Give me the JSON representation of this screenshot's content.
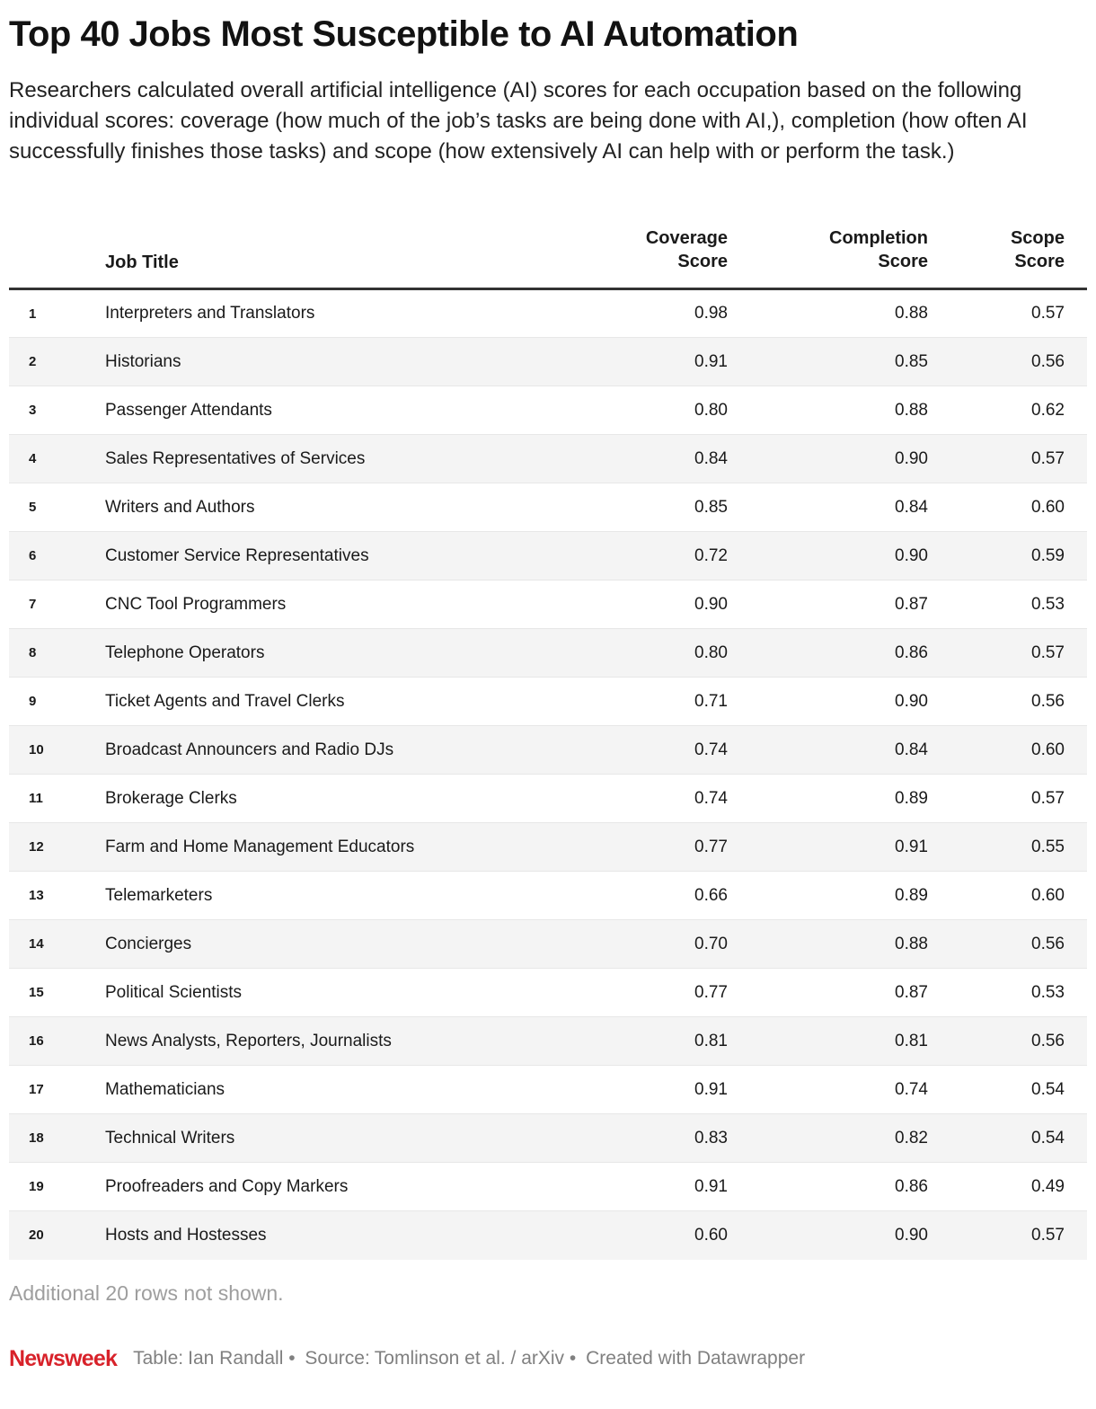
{
  "header": {
    "title": "Top 40 Jobs Most Susceptible to AI Automation",
    "subtitle": "Researchers calculated overall artificial intelligence (AI) scores for each occupation based on the following individual scores: coverage (how much of the job’s tasks are being done with AI,), completion (how often AI successfully finishes those tasks) and scope (how extensively AI can help with or perform the task.)"
  },
  "table": {
    "headers": {
      "rank": "",
      "job_title": "Job Title",
      "coverage_line1": "Coverage",
      "coverage_line2": "Score",
      "completion_line1": "Completion",
      "completion_line2": "Score",
      "scope_line1": "Scope",
      "scope_line2": "Score"
    }
  },
  "chart_data": {
    "type": "table",
    "title": "Top 40 Jobs Most Susceptible to AI Automation",
    "columns": [
      "",
      "Job Title",
      "Coverage Score",
      "Completion Score",
      "Scope Score"
    ],
    "rows": [
      [
        "1",
        "Interpreters and Translators",
        "0.98",
        "0.88",
        "0.57"
      ],
      [
        "2",
        "Historians",
        "0.91",
        "0.85",
        "0.56"
      ],
      [
        "3",
        "Passenger Attendants",
        "0.80",
        "0.88",
        "0.62"
      ],
      [
        "4",
        "Sales Representatives of Services",
        "0.84",
        "0.90",
        "0.57"
      ],
      [
        "5",
        "Writers and Authors",
        "0.85",
        "0.84",
        "0.60"
      ],
      [
        "6",
        "Customer Service Representatives",
        "0.72",
        "0.90",
        "0.59"
      ],
      [
        "7",
        "CNC Tool Programmers",
        "0.90",
        "0.87",
        "0.53"
      ],
      [
        "8",
        "Telephone Operators",
        "0.80",
        "0.86",
        "0.57"
      ],
      [
        "9",
        "Ticket Agents and Travel Clerks",
        "0.71",
        "0.90",
        "0.56"
      ],
      [
        "10",
        "Broadcast Announcers and Radio DJs",
        "0.74",
        "0.84",
        "0.60"
      ],
      [
        "11",
        "Brokerage Clerks",
        "0.74",
        "0.89",
        "0.57"
      ],
      [
        "12",
        "Farm and Home Management Educators",
        "0.77",
        "0.91",
        "0.55"
      ],
      [
        "13",
        "Telemarketers",
        "0.66",
        "0.89",
        "0.60"
      ],
      [
        "14",
        "Concierges",
        "0.70",
        "0.88",
        "0.56"
      ],
      [
        "15",
        "Political Scientists",
        "0.77",
        "0.87",
        "0.53"
      ],
      [
        "16",
        "News Analysts, Reporters, Journalists",
        "0.81",
        "0.81",
        "0.56"
      ],
      [
        "17",
        "Mathematicians",
        "0.91",
        "0.74",
        "0.54"
      ],
      [
        "18",
        "Technical Writers",
        "0.83",
        "0.82",
        "0.54"
      ],
      [
        "19",
        "Proofreaders and Copy Markers",
        "0.91",
        "0.86",
        "0.49"
      ],
      [
        "20",
        "Hosts and Hostesses",
        "0.60",
        "0.90",
        "0.57"
      ]
    ],
    "striped_rows": true,
    "stripe_color": "#f4f4f4",
    "header_rule_color": "#333333"
  },
  "notes": {
    "additional_rows": "Additional 20 rows not shown."
  },
  "footer": {
    "brand": "Newsweek",
    "brand_color": "#d8222a",
    "credit_prefix": "Table:",
    "credit_name": "Ian Randall",
    "bullet": "•",
    "source_prefix": "Source:",
    "source_name": "Tomlinson et al. / arXiv",
    "created_with": "Created with Datawrapper",
    "text_color": "#808080"
  }
}
